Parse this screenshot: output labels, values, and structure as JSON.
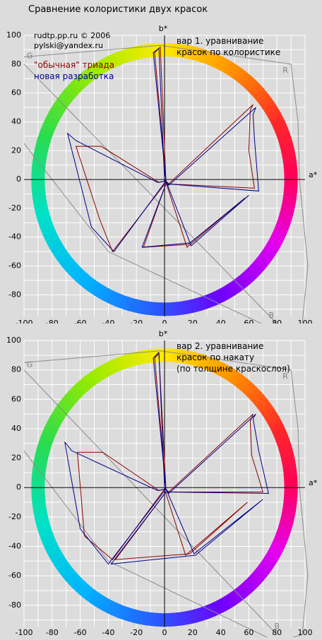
{
  "title": "Сравнение колористики двух красок",
  "credits": {
    "site": "rudtp.pp.ru © 2006",
    "email": "pylski@yandex.ru"
  },
  "legend": [
    {
      "label": "\"обычная\" триада",
      "color": "#8b0000"
    },
    {
      "label": "новая разработка",
      "color": "#00008b"
    }
  ],
  "colors": {
    "background": "#dcdcdc",
    "grid": "#ffffff",
    "axes": "#000000",
    "reference": "#8c8c8c"
  },
  "chart_data": [
    {
      "type": "line",
      "title": "",
      "annotation": [
        "вар 1. уравнивание",
        "красок по колористике"
      ],
      "xlabel": "a*",
      "ylabel": "b*",
      "xlim": [
        -100,
        100
      ],
      "ylim": [
        -95,
        100
      ],
      "xticks": [
        -100,
        -80,
        -60,
        -40,
        -20,
        0,
        20,
        40,
        60,
        80,
        100
      ],
      "yticks": [
        100,
        80,
        60,
        40,
        20,
        0,
        -20,
        -40,
        -60,
        -80
      ],
      "grid": true,
      "hue_ring": {
        "center": [
          0,
          0
        ],
        "radius": 90
      },
      "reference_labels": [
        {
          "text": "G",
          "x": -96,
          "y": 84
        },
        {
          "text": "R",
          "x": 86,
          "y": 74
        },
        {
          "text": "B",
          "x": 76,
          "y": -96
        }
      ],
      "reference_outline": {
        "x": [
          -100,
          -3,
          90,
          95,
          96,
          102,
          98,
          80,
          -40,
          -100
        ],
        "y": [
          85,
          93,
          80,
          40,
          0,
          -60,
          -100,
          -105,
          -50,
          25
        ]
      },
      "series": [
        {
          "name": "\"обычная\" триада",
          "color": "#8b0000",
          "x": [
            -3,
            1,
            3,
            63,
            61,
            60,
            64,
            1,
            -15,
            17,
            57,
            16,
            1,
            -37,
            -46,
            -63,
            -45,
            -4,
            1,
            -7,
            -3
          ],
          "y": [
            92,
            -1,
            -3,
            52,
            48,
            20,
            -6,
            -3,
            -47,
            -45,
            -13,
            -47,
            -2,
            -50,
            -28,
            23,
            23,
            -2,
            -1,
            88,
            92
          ]
        },
        {
          "name": "новая разработка",
          "color": "#00008b",
          "x": [
            -4,
            0,
            3,
            65,
            63,
            64,
            67,
            1,
            -16,
            18,
            60,
            19,
            1,
            -36,
            -52,
            -69,
            -63,
            -5,
            1,
            -8,
            -4
          ],
          "y": [
            91,
            0,
            -4,
            50,
            45,
            28,
            -8,
            -3,
            -47,
            -44,
            -11,
            -46,
            -1,
            -50,
            -33,
            32,
            27,
            -2,
            -1,
            88,
            91
          ]
        }
      ]
    },
    {
      "type": "line",
      "title": "",
      "annotation": [
        "вар 2. уравнивание",
        "красок по накату",
        "(по толщине краскослоя)"
      ],
      "xlabel": "a*",
      "ylabel": "b*",
      "xlim": [
        -100,
        100
      ],
      "ylim": [
        -95,
        100
      ],
      "xticks": [
        -100,
        -80,
        -60,
        -40,
        -20,
        0,
        20,
        40,
        60,
        80,
        100
      ],
      "yticks": [
        100,
        80,
        60,
        40,
        20,
        0,
        -20,
        -40,
        -60,
        -80
      ],
      "grid": true,
      "hue_ring": {
        "center": [
          0,
          0
        ],
        "radius": 90
      },
      "reference_labels": [
        {
          "text": "G",
          "x": -96,
          "y": 82
        },
        {
          "text": "R",
          "x": 86,
          "y": 74
        },
        {
          "text": "B",
          "x": 80,
          "y": -96
        }
      ],
      "reference_outline": {
        "x": [
          -100,
          -3,
          90,
          95,
          96,
          102,
          98,
          80,
          -40,
          -100
        ],
        "y": [
          85,
          93,
          80,
          40,
          0,
          -60,
          -100,
          -105,
          -50,
          25
        ]
      },
      "series": [
        {
          "name": "\"обычная\" триада",
          "color": "#8b0000",
          "x": [
            -4,
            1,
            3,
            63,
            61,
            62,
            70,
            1,
            -35,
            18,
            59,
            15,
            0,
            -37,
            -57,
            -62,
            -44,
            -4,
            1,
            -7,
            -4
          ],
          "y": [
            91,
            -1,
            -3,
            50,
            45,
            22,
            -3,
            -3,
            -49,
            -45,
            -10,
            -46,
            -1,
            -49,
            -33,
            24,
            24,
            -2,
            -1,
            88,
            91
          ]
        },
        {
          "name": "новая разработка",
          "color": "#00008b",
          "x": [
            -4,
            0,
            3,
            65,
            63,
            67,
            74,
            1,
            -38,
            22,
            70,
            21,
            1,
            -40,
            -60,
            -71,
            -66,
            -5,
            1,
            -8,
            -4
          ],
          "y": [
            92,
            0,
            -4,
            50,
            47,
            25,
            -4,
            -3,
            -52,
            -46,
            -8,
            -45,
            -1,
            -52,
            -28,
            31,
            25,
            -2,
            -1,
            88,
            92
          ]
        }
      ]
    }
  ]
}
